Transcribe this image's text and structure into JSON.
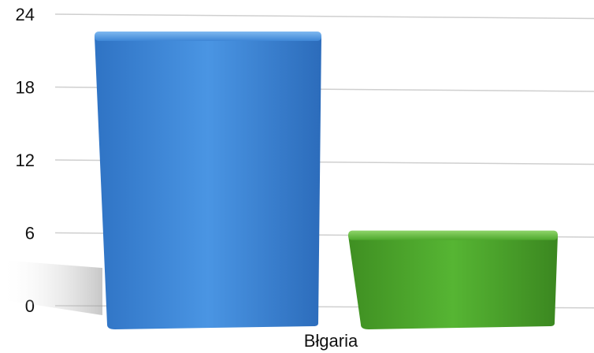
{
  "chart_data": {
    "type": "bar",
    "categories": [
      "Błgaria"
    ],
    "series": [
      {
        "values": [
          22.5
        ],
        "color": "#3a86d6"
      },
      {
        "values": [
          7.3
        ],
        "color": "#4aa52c"
      }
    ],
    "y_ticks": [
      "0",
      "6",
      "12",
      "18",
      "24"
    ],
    "ylim": [
      0,
      24
    ],
    "grid": true,
    "style": "3d"
  }
}
